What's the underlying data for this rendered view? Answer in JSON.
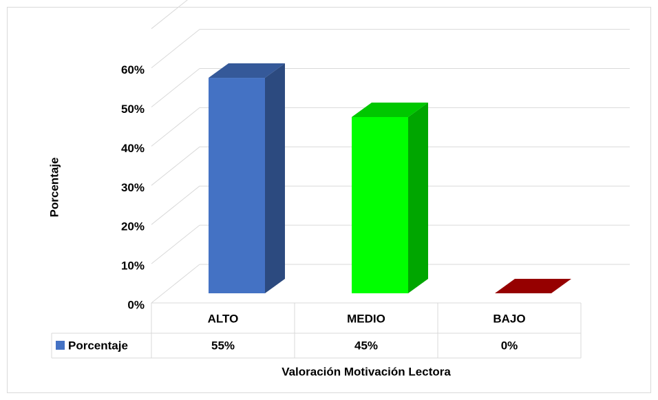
{
  "chart_data": {
    "type": "bar3d",
    "x_label": "Valoración Motivación Lectora",
    "y_label": "Porcentaje",
    "categories": [
      "ALTO",
      "MEDIO",
      "BAJO"
    ],
    "series": [
      {
        "name": "Porcentaje",
        "color": "#4472c4",
        "colors": [
          "#4472c4",
          "#00ff00",
          "#c00000"
        ],
        "values": [
          55,
          45,
          0
        ],
        "value_labels": [
          "55%",
          "45%",
          "0%"
        ]
      }
    ],
    "ylim": [
      0,
      70
    ],
    "yticks": [
      {
        "value": 0,
        "label": "0%"
      },
      {
        "value": 10,
        "label": "10%"
      },
      {
        "value": 20,
        "label": "20%"
      },
      {
        "value": 30,
        "label": "30%"
      },
      {
        "value": 40,
        "label": "40%"
      },
      {
        "value": 50,
        "label": "50%"
      },
      {
        "value": 60,
        "label": "60%"
      }
    ],
    "grid": true
  }
}
